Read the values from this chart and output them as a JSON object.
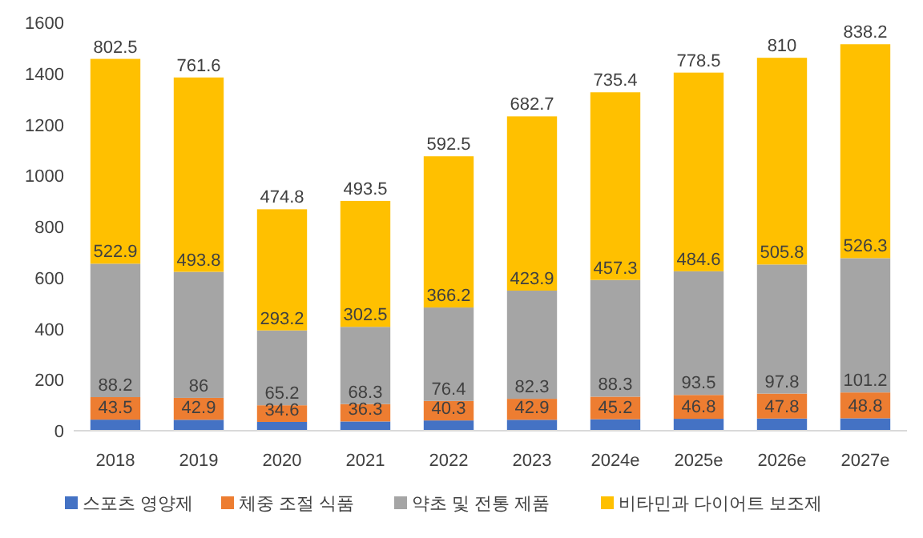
{
  "chart_data": {
    "type": "bar",
    "stacked": true,
    "categories": [
      "2018",
      "2019",
      "2020",
      "2021",
      "2022",
      "2023",
      "2024e",
      "2025e",
      "2026e",
      "2027e"
    ],
    "series": [
      {
        "name": "스포츠 영양제",
        "color": "#4472c4",
        "values": [
          43.5,
          42.9,
          34.6,
          36.3,
          40.3,
          42.9,
          45.2,
          46.8,
          47.8,
          48.8
        ]
      },
      {
        "name": "체중 조절 식품",
        "color": "#ed7d31",
        "values": [
          88.2,
          86,
          65.2,
          68.3,
          76.4,
          82.3,
          88.3,
          93.5,
          97.8,
          101.2
        ]
      },
      {
        "name": "약초 및 전통 제품",
        "color": "#a5a5a5",
        "values": [
          522.9,
          493.8,
          293.2,
          302.5,
          366.2,
          423.9,
          457.3,
          484.6,
          505.8,
          526.3
        ]
      },
      {
        "name": "비타민과 다이어트 보조제",
        "color": "#ffc000",
        "values": [
          802.5,
          761.6,
          474.8,
          493.5,
          592.5,
          682.7,
          735.4,
          778.5,
          810,
          838.2
        ]
      }
    ],
    "ylim": [
      0,
      1600
    ],
    "yticks": [
      0,
      200,
      400,
      600,
      800,
      1000,
      1200,
      1400,
      1600
    ],
    "data_labels": true,
    "legend": "bottom",
    "grid": false
  }
}
